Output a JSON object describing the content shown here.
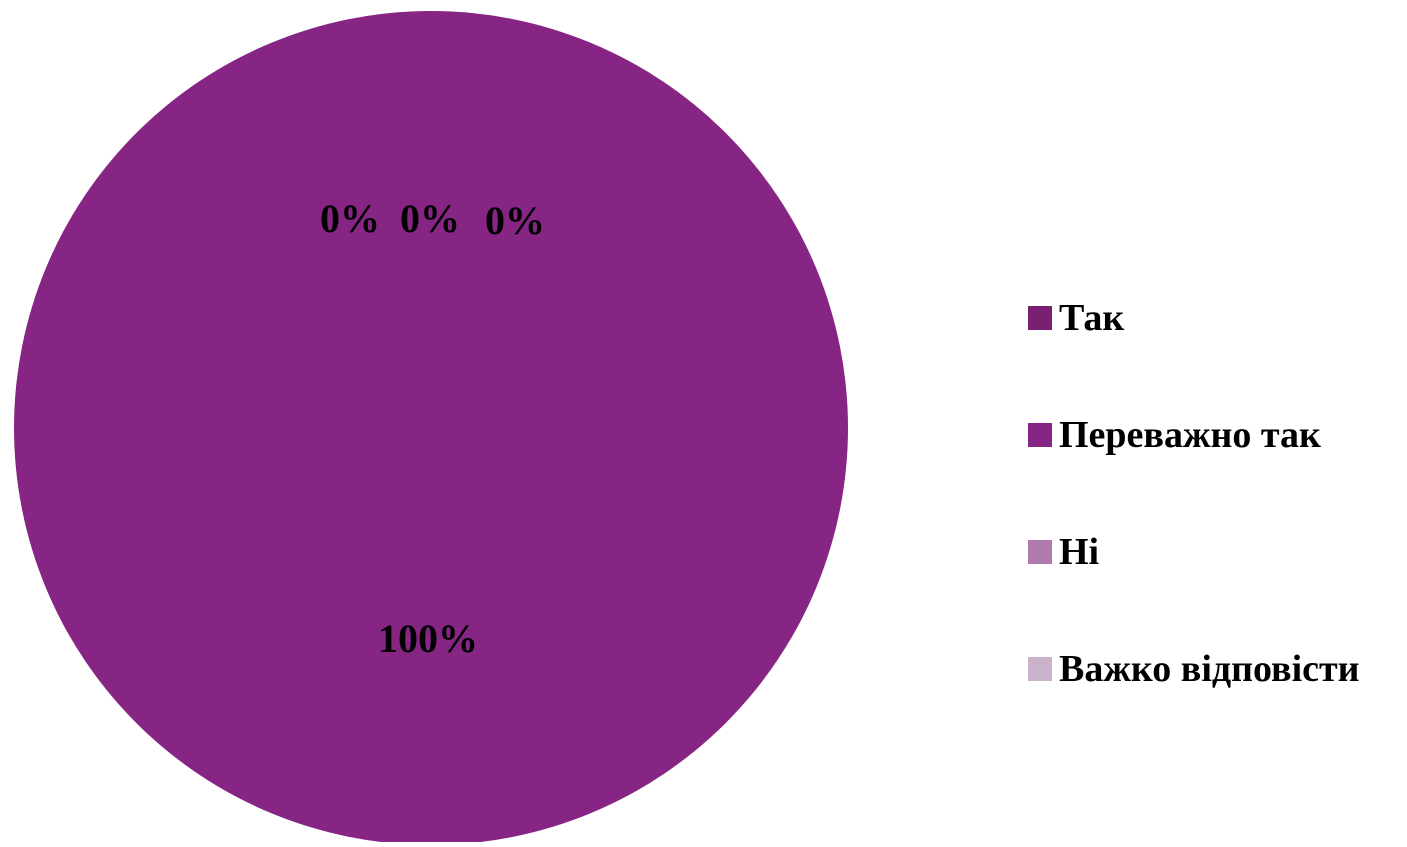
{
  "chart_data": {
    "type": "pie",
    "categories": [
      "Так",
      "Переважно так",
      "Ні",
      "Важко відповісти"
    ],
    "values": [
      0,
      100,
      0,
      0
    ],
    "data_labels": [
      "0%",
      "100%",
      "0%",
      "0%"
    ],
    "colors": [
      "#7A1F72",
      "#872585",
      "#B07AAE",
      "#CBB1CA"
    ],
    "legend_position": "right",
    "title": ""
  }
}
